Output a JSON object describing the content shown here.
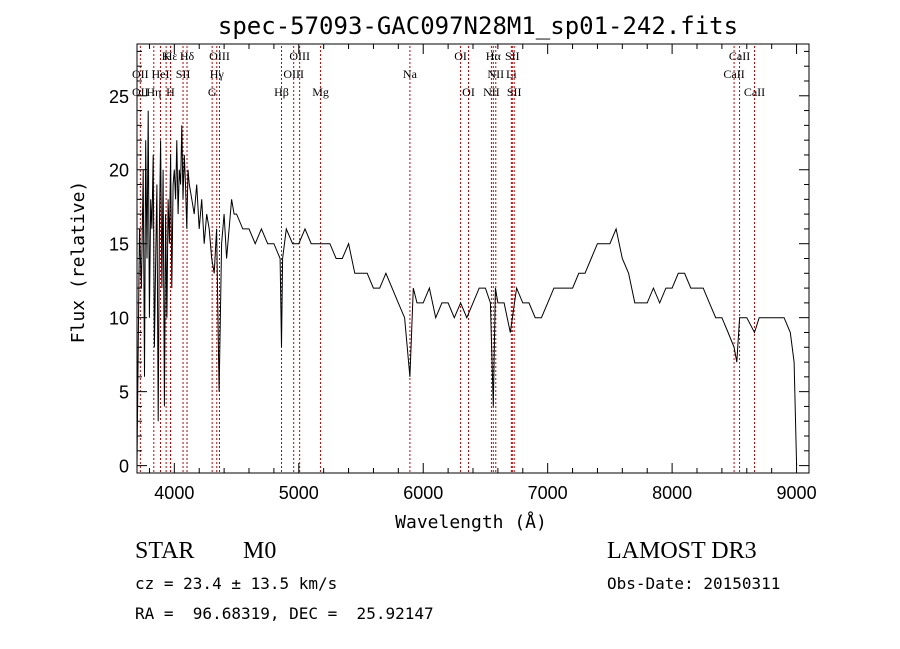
{
  "chart_data": {
    "type": "line",
    "title": "spec-57093-GAC097N28M1_sp01-242.fits",
    "xlabel": "Wavelength (Å)",
    "ylabel": "Flux (relative)",
    "xlim": [
      3700,
      9100
    ],
    "ylim": [
      -0.5,
      28.5
    ],
    "xticks": [
      4000,
      5000,
      6000,
      7000,
      8000,
      9000
    ],
    "yticks": [
      0,
      5,
      10,
      15,
      20,
      25
    ],
    "series": [
      {
        "name": "flux",
        "color": "#000000",
        "x": [
          3700,
          3710,
          3720,
          3735,
          3750,
          3760,
          3770,
          3780,
          3790,
          3800,
          3810,
          3820,
          3830,
          3840,
          3850,
          3860,
          3870,
          3880,
          3890,
          3900,
          3910,
          3920,
          3930,
          3940,
          3950,
          3960,
          3970,
          3980,
          3990,
          4000,
          4010,
          4020,
          4030,
          4040,
          4050,
          4060,
          4070,
          4080,
          4090,
          4100,
          4110,
          4120,
          4140,
          4160,
          4180,
          4200,
          4220,
          4240,
          4260,
          4280,
          4300,
          4320,
          4340,
          4360,
          4380,
          4400,
          4420,
          4440,
          4460,
          4480,
          4500,
          4550,
          4600,
          4650,
          4700,
          4750,
          4800,
          4850,
          4861,
          4870,
          4900,
          4950,
          5000,
          5050,
          5100,
          5150,
          5200,
          5250,
          5300,
          5350,
          5400,
          5450,
          5500,
          5550,
          5600,
          5650,
          5700,
          5750,
          5800,
          5850,
          5893,
          5920,
          5950,
          6000,
          6050,
          6100,
          6150,
          6200,
          6250,
          6300,
          6350,
          6400,
          6450,
          6500,
          6540,
          6563,
          6580,
          6600,
          6650,
          6700,
          6750,
          6800,
          6850,
          6900,
          6950,
          7000,
          7050,
          7100,
          7150,
          7200,
          7250,
          7300,
          7350,
          7400,
          7450,
          7500,
          7550,
          7600,
          7650,
          7700,
          7750,
          7800,
          7850,
          7900,
          7950,
          8000,
          8050,
          8100,
          8150,
          8200,
          8250,
          8300,
          8350,
          8400,
          8450,
          8498,
          8520,
          8542,
          8560,
          8600,
          8662,
          8700,
          8750,
          8800,
          8850,
          8900,
          8950,
          8980,
          9000
        ],
        "values": [
          0,
          8,
          16,
          12,
          20,
          6,
          22,
          14,
          24,
          10,
          18,
          16,
          21,
          8,
          14,
          19,
          3,
          16,
          22,
          12,
          20,
          4,
          17,
          10,
          18,
          15,
          21,
          12,
          19,
          20,
          18,
          22,
          17,
          20,
          19,
          23,
          18,
          21,
          19,
          16,
          20,
          19,
          18,
          17,
          19,
          16,
          18,
          15,
          17,
          16,
          14,
          13,
          16,
          5,
          15,
          17,
          14,
          16,
          18,
          17,
          17,
          16,
          16,
          15,
          16,
          15,
          15,
          14,
          8,
          14,
          16,
          15,
          15,
          16,
          15,
          15,
          15,
          15,
          14,
          14,
          15,
          13,
          13,
          13,
          12,
          12,
          13,
          12,
          11,
          10,
          6,
          12,
          11,
          11,
          12,
          10,
          11,
          11,
          10,
          11,
          10,
          11,
          12,
          12,
          11,
          4,
          12,
          11,
          11,
          9,
          12,
          11,
          11,
          10,
          10,
          11,
          12,
          12,
          12,
          12,
          13,
          13,
          14,
          15,
          15,
          15,
          16,
          14,
          13,
          11,
          11,
          11,
          12,
          11,
          12,
          12,
          13,
          13,
          12,
          12,
          12,
          11,
          10,
          10,
          9,
          8,
          7,
          10,
          10,
          10,
          9,
          10,
          10,
          10,
          10,
          10,
          9,
          7,
          0
        ]
      }
    ],
    "line_labels": [
      {
        "label": "Hε",
        "x": 3970,
        "row": 0
      },
      {
        "label": "Hδ",
        "x": 4102,
        "row": 0
      },
      {
        "label": "K",
        "x": 3934,
        "row": 0
      },
      {
        "label": "OII",
        "x": 3727,
        "row": 1
      },
      {
        "label": "HeI",
        "x": 3889,
        "row": 1
      },
      {
        "label": "SII",
        "x": 4070,
        "row": 1
      },
      {
        "label": "OII",
        "x": 3727,
        "row": 2
      },
      {
        "label": "Hη",
        "x": 3835,
        "row": 2
      },
      {
        "label": "H",
        "x": 3969,
        "row": 2
      },
      {
        "label": "OIII",
        "x": 4363,
        "row": 0
      },
      {
        "label": "Hγ",
        "x": 4341,
        "row": 1
      },
      {
        "label": "G",
        "x": 4304,
        "row": 2
      },
      {
        "label": "Hβ",
        "x": 4861,
        "row": 2
      },
      {
        "label": "OIII",
        "x": 5007,
        "row": 0
      },
      {
        "label": "OIII",
        "x": 4959,
        "row": 1
      },
      {
        "label": "Mg",
        "x": 5175,
        "row": 2
      },
      {
        "label": "Na",
        "x": 5893,
        "row": 1
      },
      {
        "label": "OI",
        "x": 6300,
        "row": 0
      },
      {
        "label": "OI",
        "x": 6364,
        "row": 2
      },
      {
        "label": "Hα",
        "x": 6563,
        "row": 0
      },
      {
        "label": "SII",
        "x": 6716,
        "row": 0
      },
      {
        "label": "NII",
        "x": 6583,
        "row": 1
      },
      {
        "label": "Li",
        "x": 6708,
        "row": 1
      },
      {
        "label": "NII",
        "x": 6548,
        "row": 2
      },
      {
        "label": "SII",
        "x": 6731,
        "row": 2
      },
      {
        "label": "CaII",
        "x": 8542,
        "row": 0
      },
      {
        "label": "CaII",
        "x": 8498,
        "row": 1
      },
      {
        "label": "CaII",
        "x": 8662,
        "row": 2
      }
    ],
    "marker_lines": [
      3727,
      3835,
      3889,
      3934,
      3969,
      3970,
      4070,
      4102,
      4304,
      4341,
      4363,
      4861,
      4959,
      5007,
      5175,
      5893,
      6300,
      6364,
      6548,
      6563,
      6583,
      6708,
      6716,
      6731,
      8498,
      8542,
      8662
    ],
    "marker_color": "#c00000"
  },
  "info": {
    "object_class": "STAR",
    "subclass": "M0",
    "survey": "LAMOST DR3",
    "redshift": "cz = 23.4 ± 13.5 km/s",
    "obs_date": "Obs-Date: 20150311",
    "coords": "RA =  96.68319, DEC =  25.92147"
  }
}
